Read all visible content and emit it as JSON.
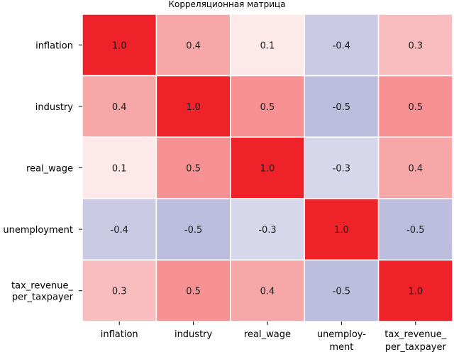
{
  "chart_data": {
    "type": "heatmap",
    "title": "Корреляционная матрица",
    "row_labels": [
      [
        "inflation"
      ],
      [
        "industry"
      ],
      [
        "real_wage"
      ],
      [
        "unemployment"
      ],
      [
        "tax_revenue_",
        "per_taxpayer"
      ]
    ],
    "col_labels": [
      [
        "inflation"
      ],
      [
        "industry"
      ],
      [
        "real_wage"
      ],
      [
        "unemploy-",
        "ment"
      ],
      [
        "tax_revenue_",
        "per_taxpayer"
      ]
    ],
    "values": [
      [
        1.0,
        0.4,
        0.1,
        -0.4,
        0.3
      ],
      [
        0.4,
        1.0,
        0.5,
        -0.5,
        0.5
      ],
      [
        0.1,
        0.5,
        1.0,
        -0.3,
        0.4
      ],
      [
        -0.4,
        -0.5,
        -0.3,
        1.0,
        -0.5
      ],
      [
        0.3,
        0.5,
        0.4,
        -0.5,
        1.0
      ]
    ],
    "display_values": [
      [
        "1.0",
        "0.4",
        "0.1",
        "-0.4",
        "0.3"
      ],
      [
        "0.4",
        "1.0",
        "0.5",
        "-0.5",
        "0.5"
      ],
      [
        "0.1",
        "0.5",
        "1.0",
        "-0.3",
        "0.4"
      ],
      [
        "-0.4",
        "-0.5",
        "-0.3",
        "1.0",
        "-0.5"
      ],
      [
        "0.3",
        "0.5",
        "0.4",
        "-0.5",
        "1.0"
      ]
    ],
    "color_range": [
      -1,
      1
    ],
    "colors": {
      "positive": "#ee2228",
      "negative": "#7b7bbd",
      "neutral": "#ffffff",
      "gridline": "#ffffff"
    }
  }
}
